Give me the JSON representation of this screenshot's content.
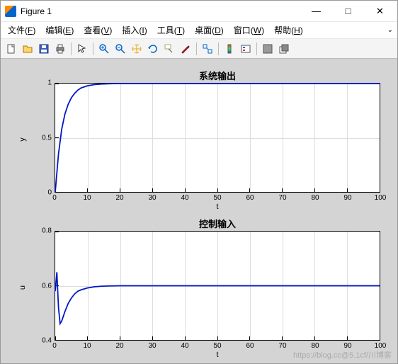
{
  "window": {
    "title": "Figure 1",
    "min": "—",
    "max": "□",
    "close": "✕"
  },
  "menu": {
    "items": [
      {
        "label": "文件",
        "u": "F"
      },
      {
        "label": "编辑",
        "u": "E"
      },
      {
        "label": "查看",
        "u": "V"
      },
      {
        "label": "插入",
        "u": "I"
      },
      {
        "label": "工具",
        "u": "T"
      },
      {
        "label": "桌面",
        "u": "D"
      },
      {
        "label": "窗口",
        "u": "W"
      },
      {
        "label": "帮助",
        "u": "H"
      }
    ],
    "chev": "⌄"
  },
  "toolbar": {
    "icons": [
      "new",
      "open",
      "save",
      "print",
      "sep",
      "pointer",
      "sep",
      "zoom-in",
      "zoom-out",
      "pan",
      "rotate",
      "datatip",
      "brush",
      "sep",
      "link",
      "sep",
      "colorbar",
      "legend",
      "sep",
      "dock",
      "undock"
    ]
  },
  "charts": [
    {
      "title": "系统输出",
      "xlabel": "t",
      "ylabel": "y",
      "xlim": [
        0,
        100
      ],
      "ylim": [
        0,
        1
      ],
      "xticks": [
        0,
        10,
        20,
        30,
        40,
        50,
        60,
        70,
        80,
        90,
        100
      ],
      "yticks": [
        0,
        0.5,
        1
      ],
      "line_color": "#0017c6",
      "line_width": 1.8,
      "grid_color": "#dddddd",
      "bg": "#ffffff",
      "border": "#000000",
      "data": {
        "x": [
          0,
          1,
          2,
          3,
          4,
          5,
          6,
          7,
          8,
          9,
          10,
          12,
          14,
          16,
          18,
          20,
          25,
          30,
          40,
          60,
          100
        ],
        "y": [
          0,
          0.35,
          0.58,
          0.72,
          0.81,
          0.87,
          0.91,
          0.94,
          0.96,
          0.97,
          0.98,
          0.99,
          0.995,
          0.998,
          0.999,
          1.0,
          1.0,
          1.0,
          1.0,
          1.0,
          1.0
        ]
      }
    },
    {
      "title": "控制输入",
      "xlabel": "t",
      "ylabel": "u",
      "xlim": [
        0,
        100
      ],
      "ylim": [
        0.4,
        0.8
      ],
      "xticks": [
        0,
        10,
        20,
        30,
        40,
        50,
        60,
        70,
        80,
        90,
        100
      ],
      "yticks": [
        0.4,
        0.6,
        0.8
      ],
      "line_color": "#0017c6",
      "line_width": 1.8,
      "grid_color": "#dddddd",
      "bg": "#ffffff",
      "border": "#000000",
      "data": {
        "x": [
          0,
          0.5,
          1,
          1.5,
          2,
          3,
          4,
          5,
          6,
          7,
          8,
          10,
          12,
          14,
          16,
          20,
          30,
          50,
          100
        ],
        "y": [
          0.58,
          0.65,
          0.52,
          0.46,
          0.47,
          0.505,
          0.535,
          0.555,
          0.57,
          0.58,
          0.585,
          0.592,
          0.596,
          0.598,
          0.599,
          0.6,
          0.6,
          0.6,
          0.6
        ]
      }
    }
  ],
  "watermark": "https://blog.cc@5.1cf/川博客",
  "colors": {
    "figbg": "#d4d4d4",
    "winbg": "#f0f0f0"
  }
}
